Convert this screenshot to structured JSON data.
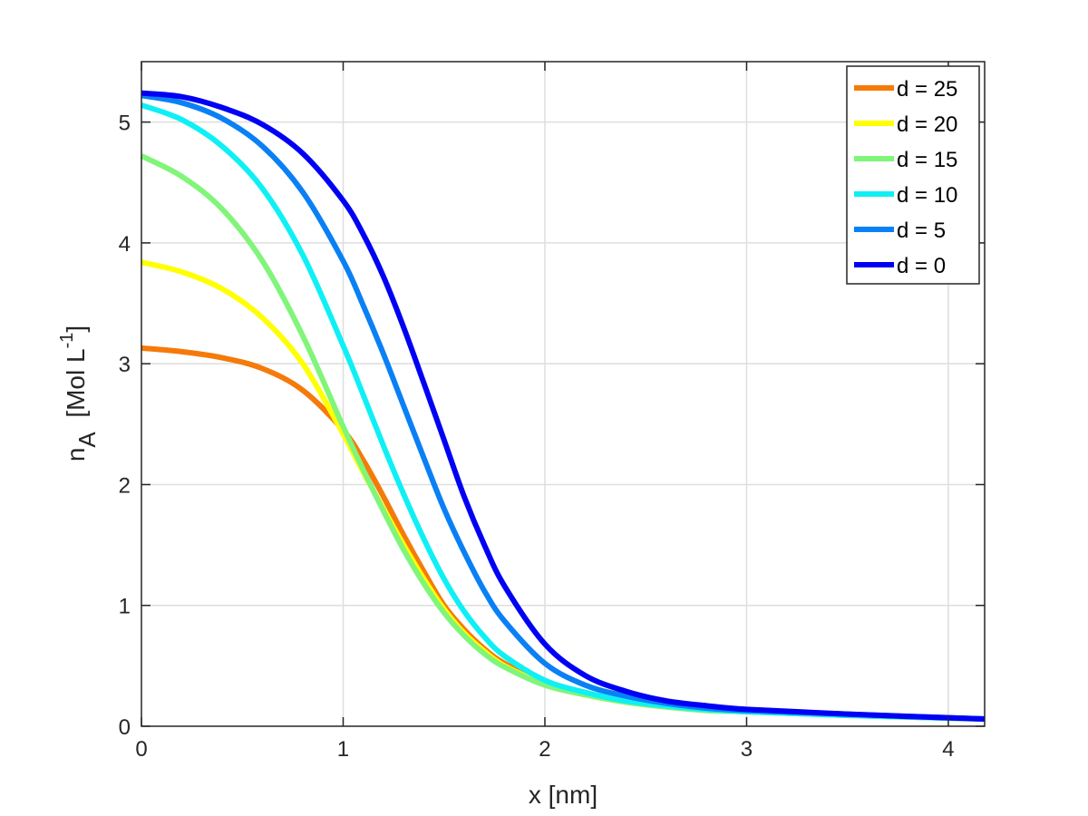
{
  "chart_data": {
    "type": "line",
    "xlabel": "x  [nm]",
    "ylabel": {
      "base": "n",
      "sub": "A",
      "bracket_open": "  [Mol L",
      "sup": "-1",
      "bracket_close": "]"
    },
    "xlim": [
      0,
      4.18
    ],
    "ylim": [
      0,
      5.5
    ],
    "xticks": [
      0,
      1,
      2,
      3,
      4
    ],
    "yticks": [
      0,
      1,
      2,
      3,
      4,
      5
    ],
    "grid": true,
    "legend_position": "top-right",
    "x": [
      0,
      0.2,
      0.4,
      0.6,
      0.8,
      1.0,
      1.1,
      1.2,
      1.3,
      1.4,
      1.5,
      1.6,
      1.7,
      1.8,
      2.0,
      2.2,
      2.4,
      2.6,
      2.8,
      3.0,
      3.5,
      4.18
    ],
    "series": [
      {
        "name": "d = 25",
        "color": "#f57a0a",
        "values": [
          3.13,
          3.1,
          3.05,
          2.96,
          2.78,
          2.45,
          2.2,
          1.9,
          1.58,
          1.28,
          1.0,
          0.8,
          0.64,
          0.52,
          0.36,
          0.27,
          0.21,
          0.17,
          0.14,
          0.12,
          0.09,
          0.06
        ]
      },
      {
        "name": "d = 20",
        "color": "#ffff00",
        "values": [
          3.84,
          3.76,
          3.62,
          3.38,
          3.0,
          2.42,
          2.1,
          1.8,
          1.5,
          1.22,
          0.97,
          0.77,
          0.62,
          0.5,
          0.35,
          0.26,
          0.2,
          0.16,
          0.14,
          0.12,
          0.09,
          0.06
        ]
      },
      {
        "name": "d = 15",
        "color": "#80f57a",
        "values": [
          4.72,
          4.55,
          4.28,
          3.85,
          3.23,
          2.48,
          2.12,
          1.78,
          1.46,
          1.18,
          0.94,
          0.75,
          0.6,
          0.49,
          0.34,
          0.26,
          0.2,
          0.16,
          0.13,
          0.12,
          0.09,
          0.06
        ]
      },
      {
        "name": "d = 10",
        "color": "#0ff0f5",
        "values": [
          5.14,
          5.02,
          4.8,
          4.45,
          3.9,
          3.15,
          2.74,
          2.32,
          1.92,
          1.55,
          1.22,
          0.95,
          0.74,
          0.58,
          0.38,
          0.28,
          0.21,
          0.17,
          0.14,
          0.12,
          0.09,
          0.06
        ]
      },
      {
        "name": "d = 5",
        "color": "#0a80f5",
        "values": [
          5.22,
          5.16,
          5.03,
          4.8,
          4.42,
          3.85,
          3.48,
          3.08,
          2.65,
          2.22,
          1.8,
          1.44,
          1.12,
          0.87,
          0.52,
          0.34,
          0.25,
          0.19,
          0.15,
          0.13,
          0.1,
          0.06
        ]
      },
      {
        "name": "d = 0",
        "color": "#0000f5",
        "values": [
          5.24,
          5.21,
          5.12,
          4.98,
          4.74,
          4.35,
          4.07,
          3.72,
          3.3,
          2.84,
          2.37,
          1.9,
          1.5,
          1.16,
          0.68,
          0.42,
          0.29,
          0.21,
          0.17,
          0.14,
          0.1,
          0.06
        ]
      }
    ]
  }
}
